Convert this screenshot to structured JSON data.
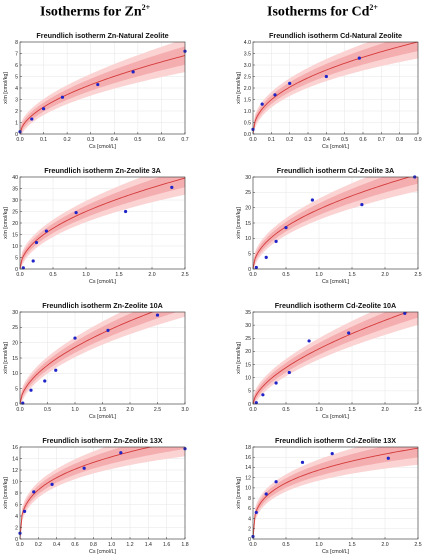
{
  "headers": {
    "left": {
      "text": "Isotherms for Zn",
      "sup": "2+"
    },
    "right": {
      "text": "Isotherms for Cd",
      "sup": "2+"
    }
  },
  "colors": {
    "band_outer": "#fbd3d3",
    "band_inner": "#f5aeb0",
    "fit_line": "#d43a3a",
    "points": "#1e24c8",
    "grid": "#e6e6e6"
  },
  "chart_data": [
    {
      "type": "scatter",
      "title": "Freundlich isotherm Zn-Natural Zeolite",
      "xlabel": "Cs [cmol/L]",
      "ylabel": "x/m [cmol/kg]",
      "xlim": [
        0,
        0.7
      ],
      "ylim": [
        0,
        8
      ],
      "xticks": [
        "0.0",
        "0.1",
        "0.2",
        "0.3",
        "0.4",
        "0.5",
        "0.6",
        "0.7"
      ],
      "yticks": [
        "0",
        "1",
        "2",
        "3",
        "4",
        "5",
        "6",
        "7",
        "8"
      ],
      "x": [
        0.0,
        0.05,
        0.1,
        0.18,
        0.33,
        0.48,
        0.7
      ],
      "y": [
        0.2,
        1.3,
        2.2,
        3.2,
        4.3,
        5.4,
        7.2
      ],
      "fit": {
        "model": "freundlich",
        "k": 8.3,
        "n": 0.55
      },
      "grid": true
    },
    {
      "type": "scatter",
      "title": "Freundlich isotherm Cd-Natural Zeolite",
      "xlabel": "Cs [cmol/L]",
      "ylabel": "x/m [cmol/kg]",
      "xlim": [
        0,
        0.9
      ],
      "ylim": [
        0,
        4
      ],
      "xticks": [
        "0.0",
        "0.1",
        "0.2",
        "0.3",
        "0.4",
        "0.5",
        "0.6",
        "0.7",
        "0.8",
        "0.9"
      ],
      "yticks": [
        "0.0",
        "0.5",
        "1.0",
        "1.5",
        "2.0",
        "2.5",
        "3.0",
        "3.5",
        "4.0"
      ],
      "x": [
        0.0,
        0.05,
        0.12,
        0.2,
        0.4,
        0.58
      ],
      "y": [
        0.2,
        1.3,
        1.7,
        2.2,
        2.5,
        3.3
      ],
      "fit": {
        "model": "freundlich",
        "k": 4.2,
        "n": 0.45
      },
      "grid": true
    },
    {
      "type": "scatter",
      "title": "Freundlich isotherm Zn-Zeolite 3A",
      "xlabel": "Cs [cmol/L]",
      "ylabel": "x/m [cmol/kg]",
      "xlim": [
        0,
        2.5
      ],
      "ylim": [
        0,
        40
      ],
      "xticks": [
        "0.0",
        "0.5",
        "1.0",
        "1.5",
        "2.0",
        "2.5"
      ],
      "yticks": [
        "0",
        "5",
        "10",
        "15",
        "20",
        "25",
        "30",
        "35",
        "40"
      ],
      "x": [
        0.05,
        0.2,
        0.25,
        0.4,
        0.85,
        1.6,
        2.3
      ],
      "y": [
        0.5,
        3.5,
        11.5,
        16.5,
        24.5,
        25.0,
        35.5
      ],
      "fit": {
        "model": "freundlich",
        "k": 25.0,
        "n": 0.5
      },
      "grid": true
    },
    {
      "type": "scatter",
      "title": "Freundlich isotherm Cd-Zeolite 3A",
      "xlabel": "Cs [cmol/L]",
      "ylabel": "x/m [cmol/kg]",
      "xlim": [
        0,
        2.5
      ],
      "ylim": [
        0,
        30
      ],
      "xticks": [
        "0.0",
        "0.5",
        "1.0",
        "1.5",
        "2.0",
        "2.5"
      ],
      "yticks": [
        "0",
        "5",
        "10",
        "15",
        "20",
        "25",
        "30"
      ],
      "x": [
        0.05,
        0.2,
        0.35,
        0.5,
        0.9,
        1.65,
        2.45
      ],
      "y": [
        0.5,
        3.8,
        9.0,
        13.5,
        22.5,
        21.0,
        30.0
      ],
      "fit": {
        "model": "freundlich",
        "k": 19.5,
        "n": 0.5
      },
      "grid": true
    },
    {
      "type": "scatter",
      "title": "Freundlich isotherm Zn-Zeolite 10A",
      "xlabel": "Cs [cmol/L]",
      "ylabel": "x/m [cmol/kg]",
      "xlim": [
        0,
        3.0
      ],
      "ylim": [
        0,
        30
      ],
      "xticks": [
        "0.0",
        "0.5",
        "1.0",
        "1.5",
        "2.0",
        "2.5",
        "3.0"
      ],
      "yticks": [
        "0",
        "5",
        "10",
        "15",
        "20",
        "25",
        "30"
      ],
      "x": [
        0.05,
        0.2,
        0.45,
        0.65,
        1.0,
        1.6,
        2.5
      ],
      "y": [
        0.3,
        4.5,
        7.5,
        11.0,
        21.5,
        24.0,
        29.0
      ],
      "fit": {
        "model": "freundlich",
        "k": 18.5,
        "n": 0.55
      },
      "grid": true
    },
    {
      "type": "scatter",
      "title": "Freundlich isotherm Cd-Zeolite 10A",
      "xlabel": "Cs [cmol/L]",
      "ylabel": "x/m [cmol/kg]",
      "xlim": [
        0,
        2.5
      ],
      "ylim": [
        0,
        35
      ],
      "xticks": [
        "0.0",
        "0.5",
        "1.0",
        "1.5",
        "2.0",
        "2.5"
      ],
      "yticks": [
        "0",
        "5",
        "10",
        "15",
        "20",
        "25",
        "30",
        "35"
      ],
      "x": [
        0.05,
        0.15,
        0.35,
        0.55,
        0.85,
        1.45,
        2.3
      ],
      "y": [
        0.5,
        3.5,
        8.0,
        12.0,
        24.0,
        27.0,
        34.5
      ],
      "fit": {
        "model": "freundlich",
        "k": 21.0,
        "n": 0.6
      },
      "grid": true
    },
    {
      "type": "scatter",
      "title": "Freundlich isotherm Zn-Zeolite 13X",
      "xlabel": "Cs [cmol/L]",
      "ylabel": "x/m [cmol/kg]",
      "xlim": [
        0,
        1.8
      ],
      "ylim": [
        0,
        16
      ],
      "xticks": [
        "0.0",
        "0.2",
        "0.4",
        "0.6",
        "0.8",
        "1.0",
        "1.2",
        "1.4",
        "1.6",
        "1.8"
      ],
      "yticks": [
        "0",
        "2",
        "4",
        "6",
        "8",
        "10",
        "12",
        "14",
        "16"
      ],
      "x": [
        0.0,
        0.05,
        0.15,
        0.35,
        0.7,
        1.1,
        1.8
      ],
      "y": [
        1.0,
        4.8,
        8.2,
        9.5,
        12.3,
        15.0,
        15.7
      ],
      "fit": {
        "model": "freundlich",
        "k": 14.3,
        "n": 0.32
      },
      "grid": true
    },
    {
      "type": "scatter",
      "title": "Freundlich isotherm Cd-Zeolite 13X",
      "xlabel": "Cs [cmol/L]",
      "ylabel": "x/m [cmol/kg]",
      "xlim": [
        0,
        2.5
      ],
      "ylim": [
        0,
        18
      ],
      "xticks": [
        "0.0",
        "0.5",
        "1.0",
        "1.5",
        "2.0",
        "2.5"
      ],
      "yticks": [
        "0",
        "2",
        "4",
        "6",
        "8",
        "10",
        "12",
        "14",
        "16",
        "18"
      ],
      "x": [
        0.0,
        0.05,
        0.2,
        0.35,
        0.75,
        1.2,
        2.05
      ],
      "y": [
        0.5,
        5.2,
        8.8,
        11.2,
        15.0,
        16.7,
        15.8
      ],
      "fit": {
        "model": "freundlich",
        "k": 13.5,
        "n": 0.3
      },
      "grid": true
    }
  ]
}
